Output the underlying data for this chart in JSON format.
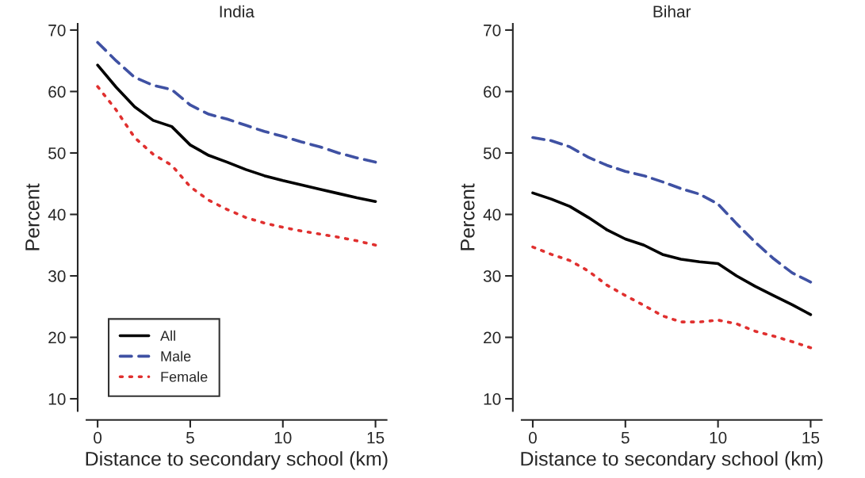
{
  "chart_data": [
    {
      "type": "line",
      "title": "India",
      "xlabel": "Distance to secondary school (km)",
      "ylabel": "Percent",
      "x": [
        0,
        1,
        2,
        3,
        4,
        5,
        6,
        7,
        8,
        9,
        10,
        11,
        12,
        13,
        14,
        15
      ],
      "xlim": [
        -0.6,
        15.6
      ],
      "xticks": [
        0,
        5,
        10,
        15
      ],
      "ylim": [
        8,
        71
      ],
      "yticks": [
        10,
        20,
        30,
        40,
        50,
        60,
        70
      ],
      "legend": "bottom left",
      "grid": false,
      "series": [
        {
          "name": "All",
          "color": "#000000",
          "line_style": "solid",
          "values": [
            64.3,
            60.7,
            57.5,
            55.3,
            54.3,
            51.3,
            49.6,
            48.5,
            47.3,
            46.3,
            45.5,
            44.8,
            44.1,
            43.4,
            42.7,
            42.1
          ]
        },
        {
          "name": "Male",
          "color": "#3f51a3",
          "line_style": "dashed",
          "values": [
            68,
            65,
            62.3,
            61,
            60.3,
            57.8,
            56.3,
            55.5,
            54.5,
            53.5,
            52.7,
            51.8,
            51,
            50,
            49.2,
            48.5
          ]
        },
        {
          "name": "Female",
          "color": "#e0302f",
          "line_style": "dotted",
          "values": [
            60.8,
            57,
            52.5,
            49.8,
            48,
            44.5,
            42.3,
            40.8,
            39.5,
            38.6,
            37.9,
            37.3,
            36.8,
            36.3,
            35.7,
            35
          ]
        }
      ]
    },
    {
      "type": "line",
      "title": "Bihar",
      "xlabel": "Distance to secondary school (km)",
      "ylabel": "Percent",
      "x": [
        0,
        1,
        2,
        3,
        4,
        5,
        6,
        7,
        8,
        9,
        10,
        11,
        12,
        13,
        14,
        15
      ],
      "xlim": [
        -0.6,
        15.6
      ],
      "xticks": [
        0,
        5,
        10,
        15
      ],
      "ylim": [
        8,
        71
      ],
      "yticks": [
        10,
        20,
        30,
        40,
        50,
        60,
        70
      ],
      "legend": false,
      "grid": false,
      "series": [
        {
          "color": "#000000",
          "line_style": "solid",
          "values": [
            43.5,
            42.5,
            41.3,
            39.5,
            37.5,
            36,
            35,
            33.5,
            32.7,
            32.3,
            32,
            30,
            28.3,
            26.8,
            25.3,
            23.7
          ]
        },
        {
          "color": "#3f51a3",
          "line_style": "dashed",
          "values": [
            52.5,
            52,
            51,
            49.3,
            48,
            47,
            46.3,
            45.3,
            44.2,
            43.3,
            41.7,
            38.5,
            35.5,
            32.8,
            30.5,
            29
          ]
        },
        {
          "color": "#e0302f",
          "line_style": "dotted",
          "values": [
            34.7,
            33.5,
            32.5,
            30.8,
            28.5,
            26.8,
            25.2,
            23.5,
            22.5,
            22.5,
            22.8,
            22.2,
            21,
            20.2,
            19.3,
            18.3
          ]
        }
      ]
    }
  ]
}
